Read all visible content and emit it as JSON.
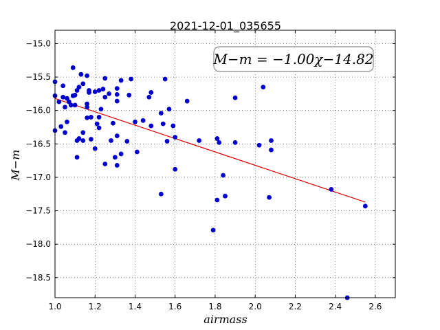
{
  "chart_data": {
    "type": "scatter",
    "title": "2021-12-01_035655",
    "xlabel": "airmass",
    "ylabel": "M−m",
    "annotation": "M−m = −1.00χ−14.82",
    "xlim": [
      1.0,
      2.7
    ],
    "ylim": [
      -18.8,
      -14.8
    ],
    "y_inverted": true,
    "grid": true,
    "x_ticks": [
      1.0,
      1.2,
      1.4,
      1.6,
      1.8,
      2.0,
      2.2,
      2.4,
      2.6
    ],
    "x_tick_labels": [
      "1.0",
      "1.2",
      "1.4",
      "1.6",
      "1.8",
      "2.0",
      "2.2",
      "2.4",
      "2.6"
    ],
    "y_ticks": [
      -15.0,
      -15.5,
      -16.0,
      -16.5,
      -17.0,
      -17.5,
      -18.0,
      -18.5
    ],
    "y_tick_labels": [
      "−15.0",
      "−15.5",
      "−16.0",
      "−16.5",
      "−17.0",
      "−17.5",
      "−18.0",
      "−18.5"
    ],
    "points_color": "#0000cc",
    "fit_color": "#dd0000",
    "fit": {
      "slope": -1.0,
      "intercept": -14.82,
      "x_range": [
        1.0,
        2.55
      ]
    },
    "points": [
      [
        1.0,
        -15.57
      ],
      [
        1.0,
        -15.78
      ],
      [
        1.0,
        -16.3
      ],
      [
        1.02,
        -15.87
      ],
      [
        1.03,
        -16.24
      ],
      [
        1.04,
        -15.8
      ],
      [
        1.04,
        -15.63
      ],
      [
        1.05,
        -15.95
      ],
      [
        1.05,
        -16.33
      ],
      [
        1.06,
        -15.82
      ],
      [
        1.06,
        -16.17
      ],
      [
        1.07,
        -15.87
      ],
      [
        1.08,
        -15.92
      ],
      [
        1.09,
        -15.36
      ],
      [
        1.09,
        -15.78
      ],
      [
        1.1,
        -15.92
      ],
      [
        1.1,
        -15.77
      ],
      [
        1.11,
        -16.45
      ],
      [
        1.11,
        -15.7
      ],
      [
        1.11,
        -16.7
      ],
      [
        1.12,
        -15.65
      ],
      [
        1.12,
        -16.42
      ],
      [
        1.13,
        -15.46
      ],
      [
        1.14,
        -16.45
      ],
      [
        1.14,
        -15.6
      ],
      [
        1.14,
        -16.33
      ],
      [
        1.16,
        -15.48
      ],
      [
        1.16,
        -15.9
      ],
      [
        1.16,
        -15.95
      ],
      [
        1.16,
        -16.11
      ],
      [
        1.17,
        -15.7
      ],
      [
        1.17,
        -15.73
      ],
      [
        1.18,
        -16.43
      ],
      [
        1.18,
        -16.1
      ],
      [
        1.2,
        -15.72
      ],
      [
        1.2,
        -16.57
      ],
      [
        1.21,
        -16.2
      ],
      [
        1.22,
        -16.26
      ],
      [
        1.22,
        -15.7
      ],
      [
        1.22,
        -16.1
      ],
      [
        1.23,
        -15.98
      ],
      [
        1.24,
        -15.68
      ],
      [
        1.25,
        -15.8
      ],
      [
        1.25,
        -16.8
      ],
      [
        1.25,
        -15.52
      ],
      [
        1.27,
        -15.75
      ],
      [
        1.28,
        -16.45
      ],
      [
        1.29,
        -16.19
      ],
      [
        1.3,
        -16.7
      ],
      [
        1.31,
        -15.86
      ],
      [
        1.31,
        -15.67
      ],
      [
        1.31,
        -16.82
      ],
      [
        1.31,
        -16.38
      ],
      [
        1.31,
        -15.76
      ],
      [
        1.33,
        -16.65
      ],
      [
        1.33,
        -15.55
      ],
      [
        1.36,
        -16.46
      ],
      [
        1.37,
        -15.77
      ],
      [
        1.38,
        -15.53
      ],
      [
        1.4,
        -16.17
      ],
      [
        1.41,
        -16.62
      ],
      [
        1.44,
        -16.15
      ],
      [
        1.47,
        -15.8
      ],
      [
        1.48,
        -16.23
      ],
      [
        1.48,
        -15.73
      ],
      [
        1.53,
        -16.04
      ],
      [
        1.54,
        -16.2
      ],
      [
        1.53,
        -17.25
      ],
      [
        1.55,
        -15.53
      ],
      [
        1.56,
        -16.46
      ],
      [
        1.57,
        -15.98
      ],
      [
        1.59,
        -16.23
      ],
      [
        1.6,
        -16.88
      ],
      [
        1.6,
        -16.4
      ],
      [
        1.66,
        -15.86
      ],
      [
        1.72,
        -16.45
      ],
      [
        1.79,
        -17.79
      ],
      [
        1.81,
        -16.42
      ],
      [
        1.81,
        -17.34
      ],
      [
        1.82,
        -16.48
      ],
      [
        1.84,
        -16.97
      ],
      [
        1.85,
        -17.28
      ],
      [
        1.9,
        -15.81
      ],
      [
        1.9,
        -16.48
      ],
      [
        2.02,
        -16.52
      ],
      [
        2.04,
        -15.65
      ],
      [
        2.07,
        -17.3
      ],
      [
        2.08,
        -16.45
      ],
      [
        2.08,
        -16.59
      ],
      [
        2.38,
        -17.18
      ],
      [
        2.46,
        -18.8
      ],
      [
        2.55,
        -17.43
      ]
    ]
  }
}
